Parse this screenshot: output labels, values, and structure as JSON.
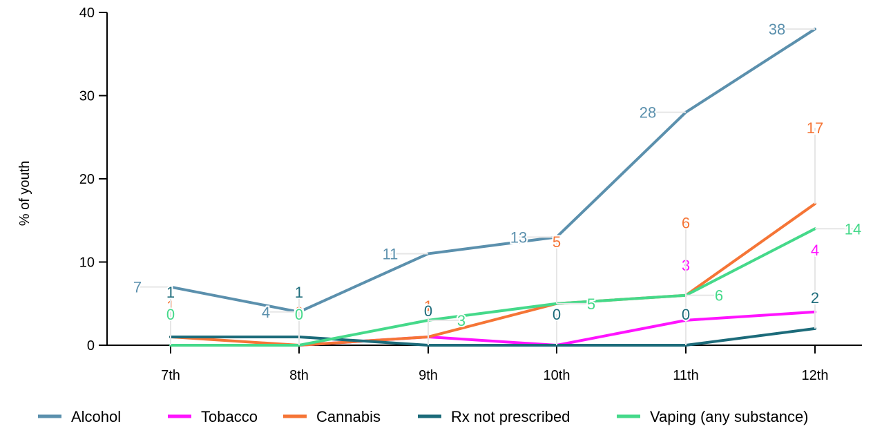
{
  "chart_data": {
    "type": "line",
    "ylabel": "% of youth",
    "ylim": [
      0,
      40
    ],
    "yticks": [
      0,
      10,
      20,
      30,
      40
    ],
    "categories": [
      "7th",
      "8th",
      "9th",
      "10th",
      "11th",
      "12th"
    ],
    "legend_position": "bottom",
    "grid": false,
    "series": [
      {
        "name": "Alcohol",
        "color": "#5b90ad",
        "values": [
          7,
          4,
          11,
          13,
          28,
          38
        ]
      },
      {
        "name": "Tobacco",
        "color": "#ff14ff",
        "values": [
          0,
          0,
          1,
          0,
          3,
          4
        ]
      },
      {
        "name": "Cannabis",
        "color": "#f57536",
        "values": [
          1,
          0,
          1,
          5,
          6,
          17
        ]
      },
      {
        "name": "Rx not prescribed",
        "color": "#1c6b7a",
        "values": [
          1,
          1,
          0,
          0,
          0,
          2
        ]
      },
      {
        "name": "Vaping (any substance)",
        "color": "#45d98a",
        "values": [
          0,
          0,
          3,
          5,
          6,
          14
        ]
      }
    ]
  }
}
